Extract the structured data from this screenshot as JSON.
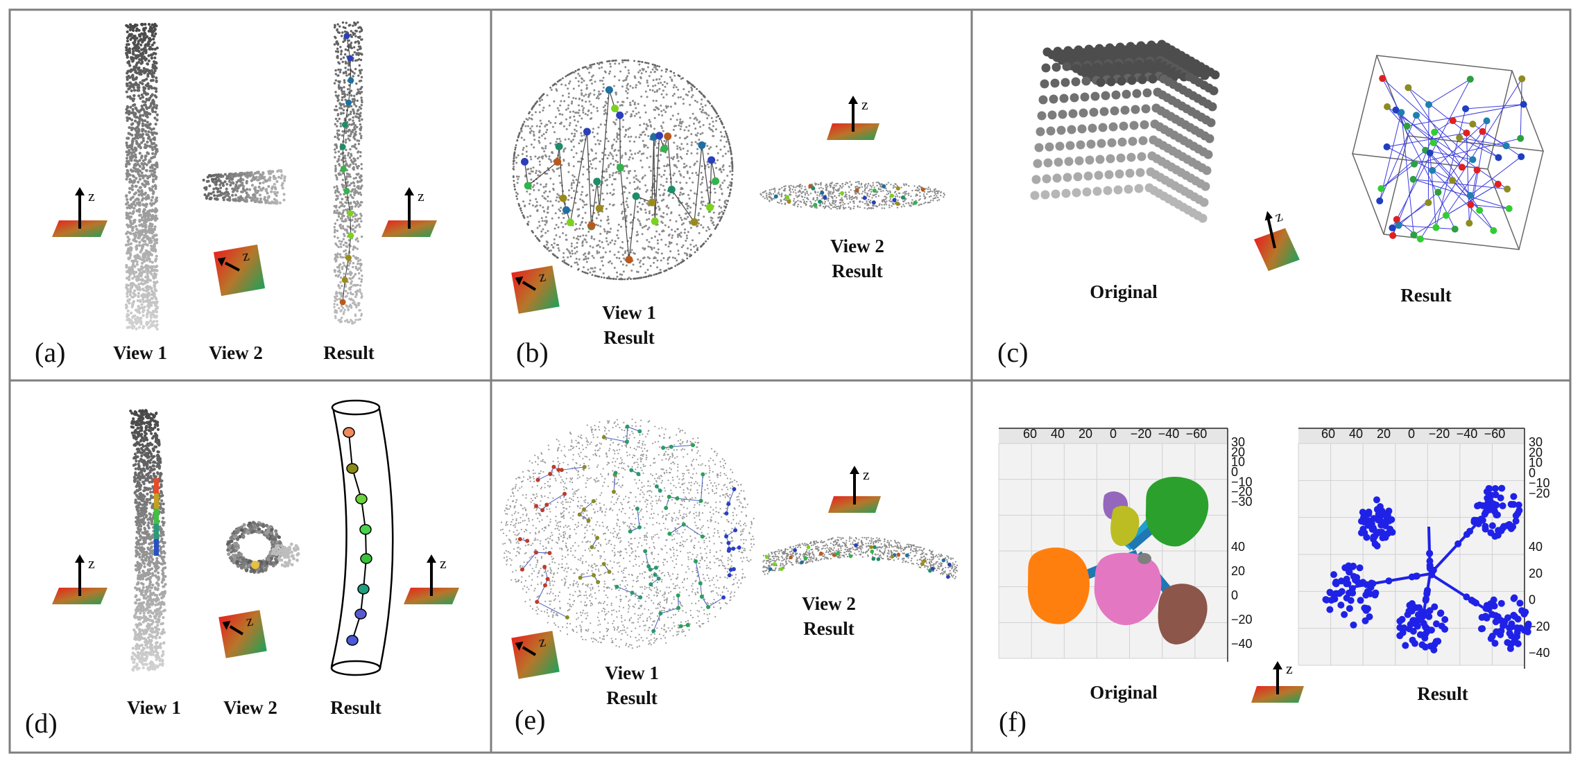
{
  "colors": {
    "frame": "#7f7f7f",
    "point_dark": "#555555",
    "point_light": "#b5b5b5",
    "node_colors": [
      "#2b3fb8",
      "#1f6fa0",
      "#1e8c6a",
      "#33b34a",
      "#7ad21e",
      "#9a8a1a",
      "#b85a1e"
    ],
    "blob_orange": "#ff7f0e",
    "blob_pink": "#e377c2",
    "blob_green": "#2ca02c",
    "blob_brown": "#8c564b",
    "blob_purple": "#9467bd",
    "blob_olive": "#bcbd22",
    "blob_cyan": "#17becf",
    "skeleton_blue": "#1f22e6"
  },
  "axis_icon_label": "z",
  "panels": [
    {
      "id": "a",
      "label": "(a)",
      "captions": [
        "View 1",
        "View 2",
        "Result"
      ]
    },
    {
      "id": "b",
      "label": "(b)",
      "captions": [
        "View 1",
        "Result",
        "View 2",
        "Result"
      ]
    },
    {
      "id": "c",
      "label": "(c)",
      "captions": [
        "Original",
        "Result"
      ]
    },
    {
      "id": "d",
      "label": "(d)",
      "captions": [
        "View 1",
        "View 2",
        "Result"
      ]
    },
    {
      "id": "e",
      "label": "(e)",
      "captions": [
        "View 1",
        "Result",
        "View 2",
        "Result"
      ]
    },
    {
      "id": "f",
      "label": "(f)",
      "captions": [
        "Original",
        "Result"
      ],
      "top_ticks": [
        "60",
        "40",
        "20",
        "0",
        "−20",
        "−40",
        "−60"
      ],
      "z_ticks": [
        "30",
        "20",
        "10",
        "0",
        "−10",
        "−20",
        "−30"
      ],
      "side_ticks": [
        "40",
        "20",
        "0",
        "−20",
        "−40"
      ],
      "z_ticks_result": [
        "30",
        "20",
        "10",
        "0",
        "−10",
        "−20"
      ]
    }
  ]
}
